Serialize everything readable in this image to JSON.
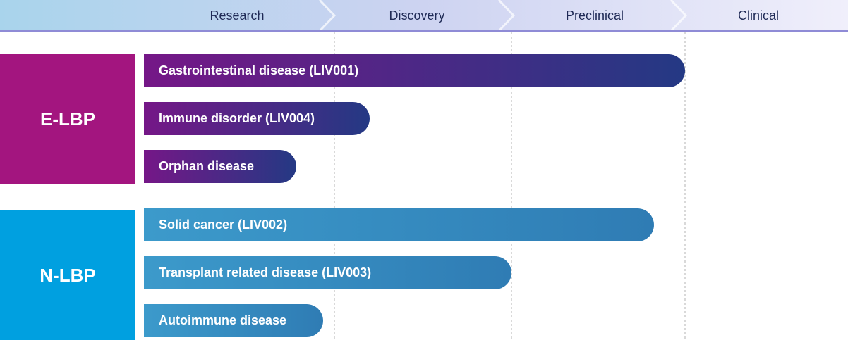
{
  "chart_data": {
    "type": "bar",
    "orientation": "horizontal",
    "stages": [
      "Research",
      "Discovery",
      "Preclinical",
      "Clinical"
    ],
    "groups": [
      {
        "name": "E-LBP",
        "color": "#a3157f",
        "programs": [
          {
            "label": "Gastrointestinal disease (LIV001)",
            "progress": 3.0
          },
          {
            "label": "Immune disorder (LIV004)",
            "progress": 1.2
          },
          {
            "label": "Orphan disease",
            "progress": 0.8
          }
        ]
      },
      {
        "name": "N-LBP",
        "color": "#00a0e0",
        "programs": [
          {
            "label": "Solid cancer (LIV002)",
            "progress": 2.82
          },
          {
            "label": "Transplant related disease (LIV003)",
            "progress": 2.0
          },
          {
            "label": "Autoimmune disease",
            "progress": 0.94
          }
        ]
      }
    ],
    "progress_unit": "stages",
    "grid": "dashed vertical lines at stage boundaries"
  }
}
